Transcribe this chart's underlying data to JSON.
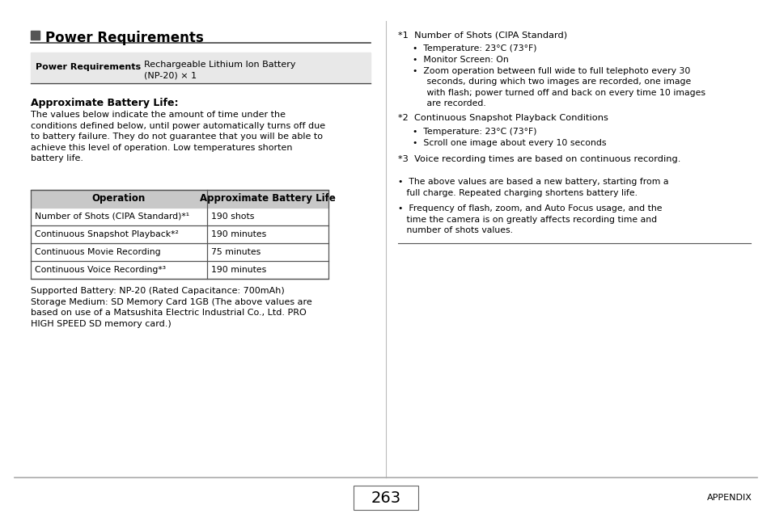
{
  "bg_color": "#ffffff",
  "title": "Power Requirements",
  "power_req_label": "Power Requirements",
  "power_req_value": "Rechargeable Lithium Ion Battery\n(NP-20) × 1",
  "approx_title": "Approximate Battery Life:",
  "approx_body": "The values below indicate the amount of time under the\nconditions defined below, until power automatically turns off due\nto battery failure. They do not guarantee that you will be able to\nachieve this level of operation. Low temperatures shorten\nbattery life.",
  "table_header_bg": "#c8c8c8",
  "table_header_col1": "Operation",
  "table_header_col2": "Approximate Battery Life",
  "table_rows": [
    [
      "Number of Shots (CIPA Standard)*¹",
      "190 shots"
    ],
    [
      "Continuous Snapshot Playback*²",
      "190 minutes"
    ],
    [
      "Continuous Movie Recording",
      "75 minutes"
    ],
    [
      "Continuous Voice Recording*³",
      "190 minutes"
    ]
  ],
  "footer_text": "Supported Battery: NP-20 (Rated Capacitance: 700mAh)\nStorage Medium: SD Memory Card 1GB (The above values are\nbased on use of a Matsushita Electric Industrial Co., Ltd. PRO\nHIGH SPEED SD memory card.)",
  "page_number": "263",
  "appendix_label": "APPENDIX"
}
